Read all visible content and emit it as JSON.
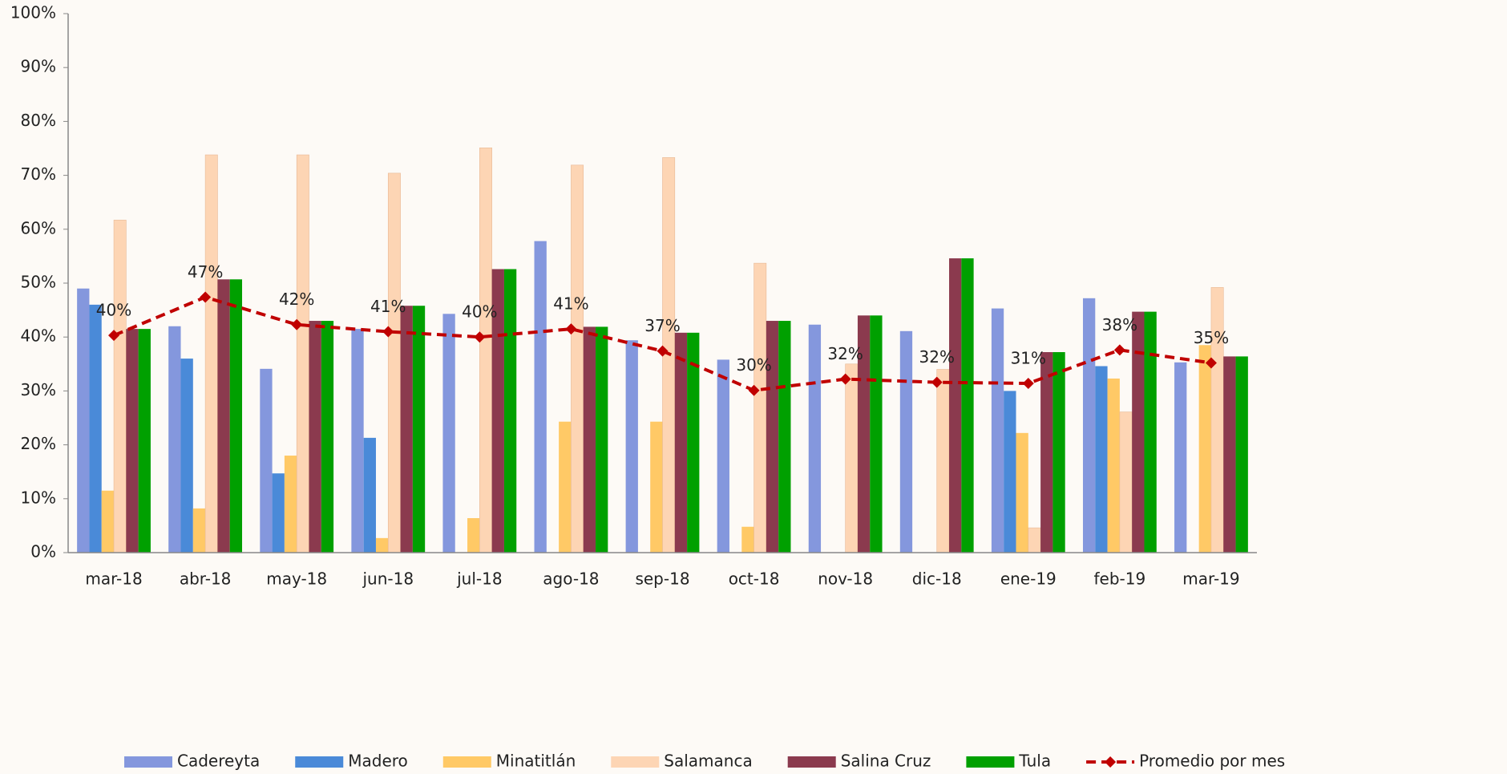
{
  "chart_data": {
    "type": "bar",
    "categories": [
      "mar-18",
      "abr-18",
      "may-18",
      "jun-18",
      "jul-18",
      "ago-18",
      "sep-18",
      "oct-18",
      "nov-18",
      "dic-18",
      "ene-19",
      "feb-19",
      "mar-19"
    ],
    "series": [
      {
        "name": "Cadereyta",
        "color": "#8497dd",
        "values": [
          49,
          42,
          34.1,
          41.5,
          44.3,
          57.8,
          39.4,
          35.8,
          42.3,
          41.1,
          45.3,
          47.2,
          35.3
        ]
      },
      {
        "name": "Madero",
        "color": "#4a8ad8",
        "values": [
          46,
          36,
          14.7,
          21.3,
          null,
          null,
          null,
          null,
          null,
          null,
          30,
          34.6,
          null
        ]
      },
      {
        "name": "Minatitlán",
        "color": "#ffc966",
        "values": [
          11.5,
          8.2,
          18,
          2.7,
          6.4,
          24.3,
          24.3,
          4.8,
          null,
          null,
          22.2,
          32.3,
          38.5
        ]
      },
      {
        "name": "Salamanca",
        "color": "#fdd5b4",
        "values": [
          61.7,
          73.8,
          73.8,
          70.4,
          75.1,
          71.9,
          73.3,
          53.7,
          35,
          34,
          4.6,
          26.1,
          49.2
        ]
      },
      {
        "name": "Salina Cruz",
        "color": "#8b3a4e",
        "values": [
          41.5,
          50.7,
          43,
          45.8,
          52.6,
          41.9,
          40.8,
          43,
          44,
          54.6,
          37.2,
          44.7,
          36.4
        ]
      },
      {
        "name": "Tula",
        "color": "#00a000",
        "values": [
          41.5,
          50.7,
          43,
          45.8,
          52.6,
          41.9,
          40.8,
          43,
          44,
          54.6,
          37.2,
          44.7,
          36.4
        ]
      },
      {
        "name": "Promedio por mes",
        "type": "line",
        "color": "#c00000",
        "values": [
          40.3,
          47.4,
          42.3,
          41,
          40,
          41.5,
          37.4,
          30.1,
          32.2,
          31.6,
          31.4,
          37.6,
          35.2
        ],
        "value_labels": [
          "40%",
          "47%",
          "42%",
          "41%",
          "40%",
          "41%",
          "37%",
          "30%",
          "32%",
          "32%",
          "31%",
          "38%",
          "35%"
        ]
      }
    ],
    "ylim": [
      0,
      100
    ],
    "yticks": [
      {
        "value": 0,
        "label": "0%"
      },
      {
        "value": 10,
        "label": "10%"
      },
      {
        "value": 20,
        "label": "20%"
      },
      {
        "value": 30,
        "label": "30%"
      },
      {
        "value": 40,
        "label": "40%"
      },
      {
        "value": 50,
        "label": "50%"
      },
      {
        "value": 60,
        "label": "60%"
      },
      {
        "value": 70,
        "label": "70%"
      },
      {
        "value": 80,
        "label": "80%"
      },
      {
        "value": 90,
        "label": "90%"
      },
      {
        "value": 100,
        "label": "100%"
      }
    ],
    "legend": "bottom"
  }
}
